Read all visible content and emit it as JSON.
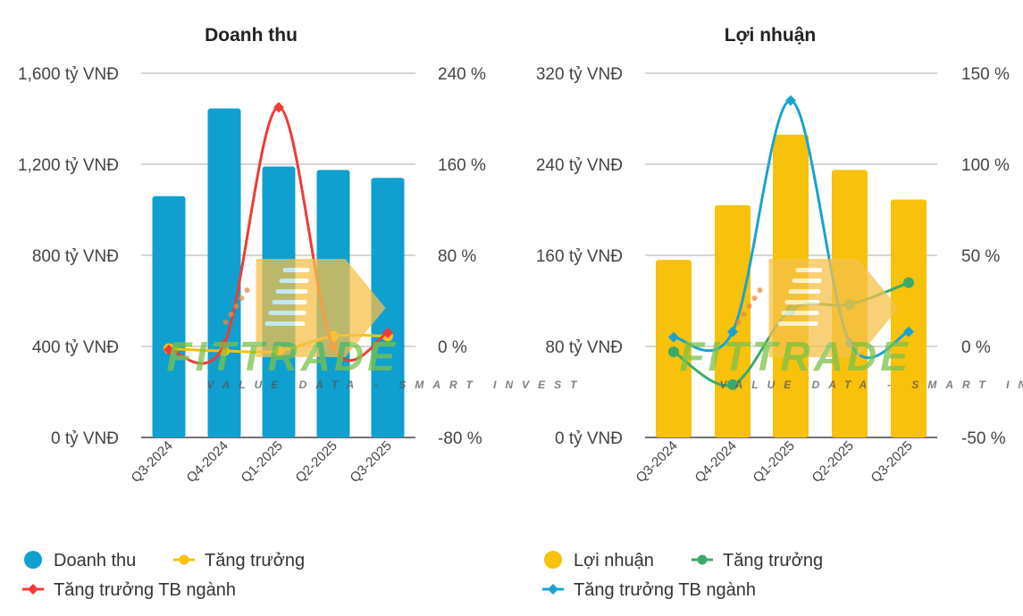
{
  "colors": {
    "blue_bar": "#0fa0cf",
    "yellow": "#f7c10c",
    "red": "#ef3b36",
    "green": "#3aaa6a",
    "cyan_line": "#1aa3d1",
    "grid": "#c8c8c8"
  },
  "watermark": {
    "brand": "FITTRADE",
    "tagline": "VALUE DATA - SMART INVEST"
  },
  "chart_data": [
    {
      "type": "bar",
      "title": "Doanh thu",
      "categories": [
        "Q3-2024",
        "Q4-2024",
        "Q1-2025",
        "Q2-2025",
        "Q3-2025"
      ],
      "ylim": [
        0,
        1600
      ],
      "y_ticks": [
        "0 tỷ VNĐ",
        "400 tỷ VNĐ",
        "800 tỷ VNĐ",
        "1,200 tỷ VNĐ",
        "1,600 tỷ VNĐ"
      ],
      "y2lim": [
        -80,
        240
      ],
      "y2_ticks": [
        "-80 %",
        "0 %",
        "80 %",
        "160 %",
        "240 %"
      ],
      "series": [
        {
          "name": "Doanh thu",
          "kind": "bar",
          "axis": "left",
          "color": "#0fa0cf",
          "values": [
            1060,
            1445,
            1190,
            1175,
            1140
          ]
        },
        {
          "name": "Tăng trưởng",
          "kind": "line",
          "axis": "right",
          "color": "#f7c10c",
          "marker": "circle",
          "values": [
            -2,
            -4,
            -4,
            9,
            9
          ]
        },
        {
          "name": "Tăng trưởng TB ngành",
          "kind": "line",
          "axis": "right",
          "color": "#ef3b36",
          "marker": "diamond",
          "values": [
            -3,
            2,
            210,
            0,
            12
          ]
        }
      ],
      "legend": [
        {
          "label": "Doanh thu",
          "marker": "circle",
          "color": "#0fa0cf"
        },
        {
          "label": "Tăng trưởng",
          "marker": "line-circle",
          "color": "#f7c10c"
        },
        {
          "label": "Tăng trưởng TB ngành",
          "marker": "line-diamond",
          "color": "#ef3b36"
        }
      ]
    },
    {
      "type": "bar",
      "title": "Lợi nhuận",
      "categories": [
        "Q3-2024",
        "Q4-2024",
        "Q1-2025",
        "Q2-2025",
        "Q3-2025"
      ],
      "ylim": [
        0,
        320
      ],
      "y_ticks": [
        "0 tỷ VNĐ",
        "80 tỷ VNĐ",
        "160 tỷ VNĐ",
        "240 tỷ VNĐ",
        "320 tỷ VNĐ"
      ],
      "y2lim": [
        -50,
        150
      ],
      "y2_ticks": [
        "-50 %",
        "0 %",
        "50 %",
        "100 %",
        "150 %"
      ],
      "series": [
        {
          "name": "Lợi nhuận",
          "kind": "bar",
          "axis": "left",
          "color": "#f7c10c",
          "values": [
            156,
            204,
            266,
            235,
            209
          ]
        },
        {
          "name": "Tăng trưởng",
          "kind": "line",
          "axis": "right",
          "color": "#3aaa6a",
          "marker": "circle",
          "values": [
            -3,
            -21,
            20,
            23,
            35
          ]
        },
        {
          "name": "Tăng trưởng TB ngành",
          "kind": "line",
          "axis": "right",
          "color": "#1aa3d1",
          "marker": "diamond",
          "values": [
            5,
            8,
            135,
            2,
            8
          ]
        }
      ],
      "legend": [
        {
          "label": "Lợi nhuận",
          "marker": "circle",
          "color": "#f7c10c"
        },
        {
          "label": "Tăng trưởng",
          "marker": "line-circle",
          "color": "#3aaa6a"
        },
        {
          "label": "Tăng trưởng TB ngành",
          "marker": "line-diamond",
          "color": "#1aa3d1"
        }
      ]
    }
  ]
}
